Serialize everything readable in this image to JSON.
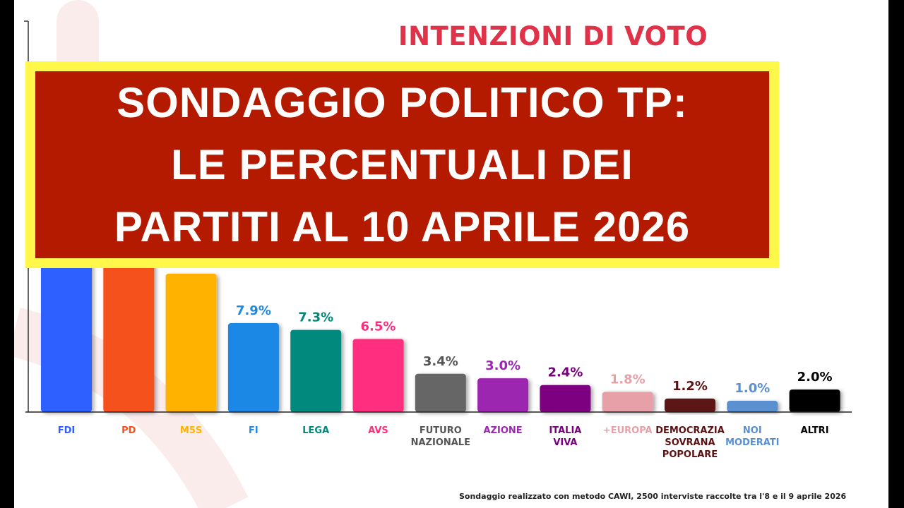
{
  "header": {
    "title": "INTENZIONI DI VOTO"
  },
  "banner": {
    "lines": [
      "SONDAGGIO POLITICO TP:",
      "LE PERCENTUALI DEI",
      "PARTITI AL 10 APRILE 2026"
    ],
    "background": "#b31a00",
    "border": "#fff84a"
  },
  "footnote": "Sondaggio realizzato con metodo CAWI, 2500 interviste raccolte tra l'8 e il 9 aprile 2026",
  "chart_data": {
    "type": "bar",
    "title": "INTENZIONI DI VOTO",
    "xlabel": "",
    "ylabel": "",
    "grid": false,
    "categories": [
      "FDI",
      "PD",
      "M5S",
      "FI",
      "LEGA",
      "AVS",
      "FUTURO NAZIONALE",
      "AZIONE",
      "ITALIA VIVA",
      "+EUROPA",
      "DEMOCRAZIA SOVRANA POPOLARE",
      "NOI MODERATI",
      "ALTRI"
    ],
    "values": [
      null,
      null,
      12.3,
      7.9,
      7.3,
      6.5,
      3.4,
      3.0,
      2.4,
      1.8,
      1.2,
      1.0,
      2.0
    ],
    "data_labels": [
      "",
      "",
      "",
      "7.9%",
      "7.3%",
      "6.5%",
      "3.4%",
      "3.0%",
      "2.4%",
      "1.8%",
      "1.2%",
      "1.0%",
      "2.0%"
    ],
    "colors": [
      "#2f5fff",
      "#f4511e",
      "#ffb300",
      "#1e88e5",
      "#00897b",
      "#ff2d7e",
      "#666666",
      "#9c27b0",
      "#7b0080",
      "#e8a0a8",
      "#5c1212",
      "#5a8fd0",
      "#000000"
    ],
    "label_colors": [
      "#2f5fff",
      "#f4511e",
      "#ffb300",
      "#1e88e5",
      "#00897b",
      "#ff2d7e",
      "#555555",
      "#9c27b0",
      "#7b0080",
      "#e8a0a8",
      "#5c1212",
      "#5a8fd0",
      "#000000"
    ]
  }
}
